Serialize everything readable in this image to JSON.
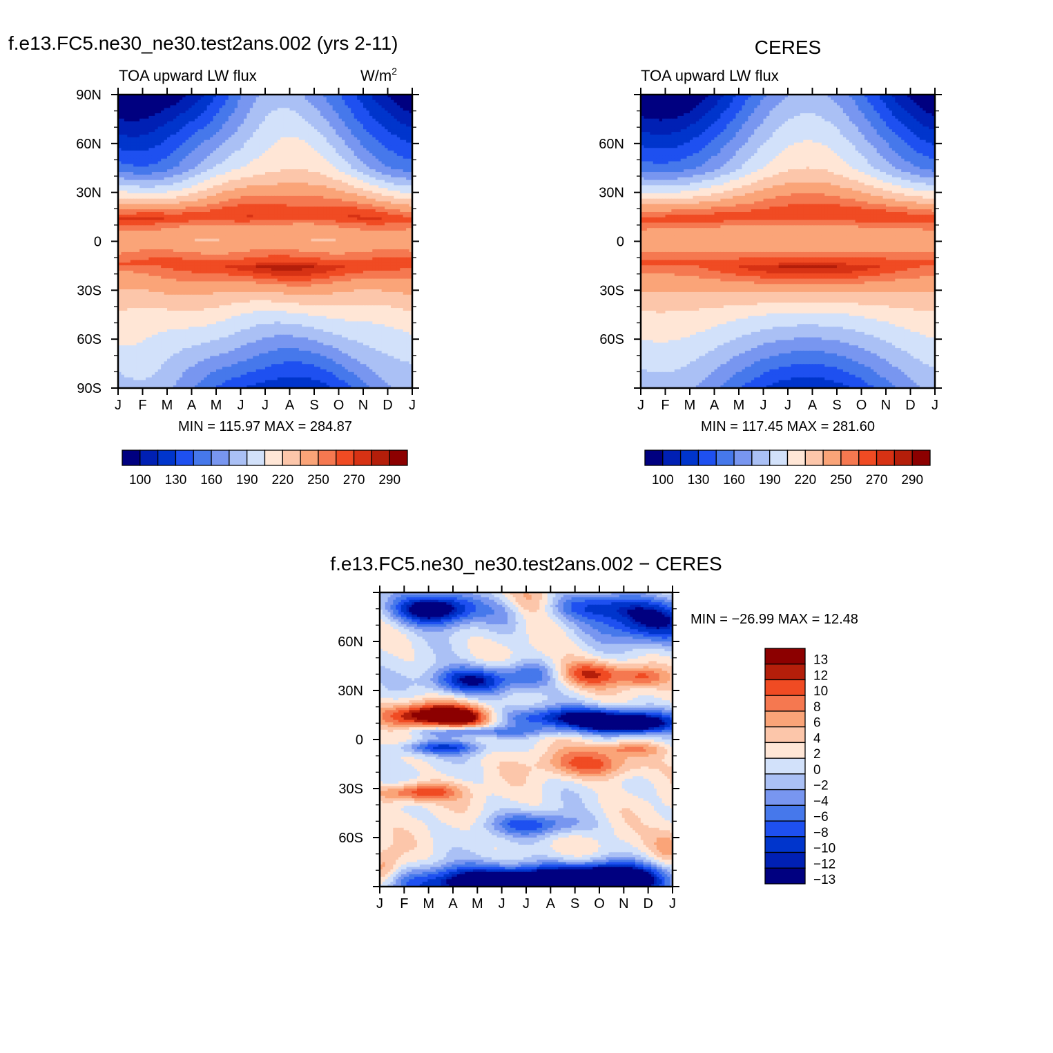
{
  "palette": {
    "abs": [
      "#000080",
      "#0020B4",
      "#0035CC",
      "#1E50F0",
      "#4678EB",
      "#7896F0",
      "#AAC0F5",
      "#D2E1FA",
      "#FFE6D6",
      "#FCC6AA",
      "#FAA478",
      "#F57850",
      "#F04B23",
      "#D73214",
      "#B41E0A",
      "#8C0000"
    ],
    "diff": [
      "#000080",
      "#0020B4",
      "#0035CC",
      "#1E50F0",
      "#4678EB",
      "#7896F0",
      "#AAC0F5",
      "#D2E1FA",
      "#FFE6D6",
      "#FCC6AA",
      "#FAA478",
      "#F57850",
      "#F04B23",
      "#B41E0A",
      "#8C0000"
    ]
  },
  "panels": {
    "model": {
      "title": "f.e13.FC5.ne30_ne30.test2ans.002 (yrs 2-11)",
      "variable": "TOA upward LW flux",
      "units": "W/m",
      "units_sup": "2",
      "stats": "MIN = 115.97 MAX = 284.87"
    },
    "obs": {
      "title": "CERES",
      "variable": "TOA upward LW flux",
      "stats": "MIN = 117.45 MAX = 281.60"
    },
    "diff": {
      "title": "f.e13.FC5.ne30_ne30.test2ans.002 − CERES",
      "stats": "MIN = −26.99 MAX =   12.48"
    }
  },
  "chart_data": [
    {
      "type": "heatmap",
      "title": "f.e13.FC5.ne30_ne30.test2ans.002 (yrs 2-11)",
      "subtitle": "TOA upward LW flux",
      "units": "W/m2",
      "x": [
        "J",
        "F",
        "M",
        "A",
        "M",
        "J",
        "J",
        "A",
        "S",
        "O",
        "N",
        "D",
        "J"
      ],
      "y_ticks": [
        "90N",
        "60N",
        "30N",
        "0",
        "30S",
        "60S",
        "90S"
      ],
      "ylim": [
        -90,
        90
      ],
      "colorbar": [
        "100",
        "130",
        "160",
        "190",
        "220",
        "250",
        "270",
        "290"
      ],
      "min": 115.97,
      "max": 284.87
    },
    {
      "type": "heatmap",
      "title": "CERES",
      "subtitle": "TOA upward LW flux",
      "x": [
        "J",
        "F",
        "M",
        "A",
        "M",
        "J",
        "J",
        "A",
        "S",
        "O",
        "N",
        "D",
        "J"
      ],
      "y_ticks": [
        "60N",
        "30N",
        "0",
        "30S",
        "60S"
      ],
      "ylim": [
        -90,
        90
      ],
      "colorbar": [
        "100",
        "130",
        "160",
        "190",
        "220",
        "250",
        "270",
        "290"
      ],
      "min": 117.45,
      "max": 281.6
    },
    {
      "type": "heatmap",
      "title": "f.e13.FC5.ne30_ne30.test2ans.002 − CERES",
      "x": [
        "J",
        "F",
        "M",
        "A",
        "M",
        "J",
        "J",
        "A",
        "S",
        "O",
        "N",
        "D",
        "J"
      ],
      "y_ticks": [
        "60N",
        "30N",
        "0",
        "30S",
        "60S"
      ],
      "ylim": [
        -90,
        90
      ],
      "colorbar": [
        "13",
        "12",
        "10",
        "8",
        "6",
        "4",
        "2",
        "0",
        "−2",
        "−4",
        "−6",
        "−8",
        "−10",
        "−12",
        "−13"
      ],
      "min": -26.99,
      "max": 12.48
    }
  ]
}
